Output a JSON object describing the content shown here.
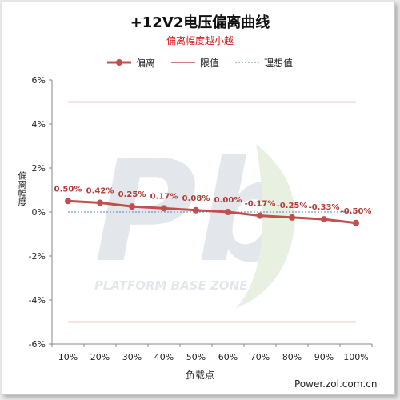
{
  "chart_data": {
    "type": "line",
    "title": "+12V2电压偏离曲线",
    "subtitle": "偏离幅度越小越",
    "xlabel": "负载点",
    "ylabel": "偏离幅度",
    "categories": [
      "10%",
      "20%",
      "30%",
      "40%",
      "50%",
      "60%",
      "70%",
      "80%",
      "90%",
      "100%"
    ],
    "series": [
      {
        "name": "偏离",
        "values": [
          0.5,
          0.42,
          0.25,
          0.17,
          0.08,
          0.0,
          -0.17,
          -0.25,
          -0.33,
          -0.5
        ],
        "labels": [
          "0.50%",
          "0.42%",
          "0.25%",
          "0.17%",
          "0.08%",
          "0.00%",
          "-0.17%",
          "-0.25%",
          "-0.33%",
          "-0.50%"
        ],
        "color": "#c0504d"
      }
    ],
    "limits": {
      "name": "限值",
      "upper": 5,
      "lower": -5,
      "color": "#c0282a"
    },
    "ideal": {
      "name": "理想值",
      "value": 0,
      "color": "#4f81bd"
    },
    "ylim": [
      -6,
      6
    ],
    "yticks": [
      -6,
      -4,
      -2,
      0,
      2,
      4,
      6
    ],
    "ytick_labels": [
      "-6%",
      "-4%",
      "-2%",
      "0%",
      "2%",
      "4%",
      "6%"
    ],
    "grid": false,
    "legend": "top-center"
  },
  "footer_text": "Power.zol.com.cn",
  "watermark_text": "PLATFORM BASE ZONE"
}
